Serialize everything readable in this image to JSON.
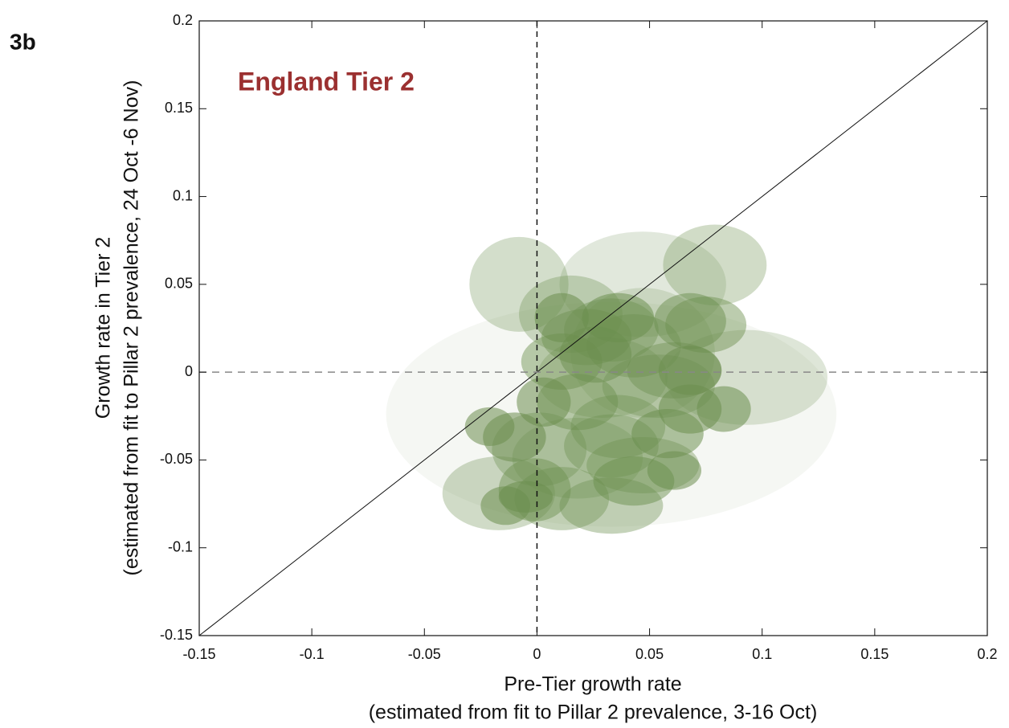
{
  "chart_data": {
    "type": "scatter",
    "panel_label": "3b",
    "title": "England Tier 2",
    "xlabel": [
      "Pre-Tier growth rate",
      "(estimated from fit to Pillar 2 prevalence, 3-16 Oct)"
    ],
    "ylabel": [
      "Growth rate in Tier 2",
      "(estimated from fit to Pillar 2 prevalence, 24 Oct -6 Nov)"
    ],
    "x": [
      0.033,
      -0.008,
      0.047,
      0.079,
      0.093,
      0.015,
      0.047,
      0.068,
      0.075,
      0.033,
      0.022,
      0.043,
      0.061,
      0.029,
      0.011,
      0.054,
      0.068,
      0.083,
      0.018,
      0.036,
      0.058,
      -0.021,
      -0.01,
      0.001,
      0.018,
      0.047,
      0.061,
      0.033,
      -0.017,
      -0.001,
      0.011,
      0.033,
      -0.014,
      -0.005,
      0.003,
      0.068,
      0.026,
      0.043,
      0.011,
      0.036
    ],
    "y": [
      -0.024,
      0.05,
      0.05,
      0.061,
      -0.003,
      0.033,
      0.011,
      0.029,
      0.027,
      0.024,
      0.02,
      0.015,
      0.001,
      -0.003,
      0.006,
      -0.008,
      -0.021,
      -0.021,
      -0.017,
      -0.031,
      -0.035,
      -0.031,
      -0.037,
      -0.044,
      -0.049,
      -0.053,
      -0.056,
      -0.042,
      -0.069,
      -0.067,
      -0.072,
      -0.076,
      -0.076,
      -0.071,
      -0.017,
      0.001,
      0.01,
      -0.062,
      0.031,
      0.031
    ],
    "xerr": [
      0.1,
      0.022,
      0.037,
      0.023,
      0.036,
      0.023,
      0.032,
      0.016,
      0.018,
      0.021,
      0.02,
      0.021,
      0.021,
      0.029,
      0.018,
      0.025,
      0.014,
      0.012,
      0.018,
      0.021,
      0.016,
      0.011,
      0.014,
      0.021,
      0.029,
      0.025,
      0.012,
      0.021,
      0.025,
      0.016,
      0.021,
      0.023,
      0.011,
      0.012,
      0.012,
      0.014,
      0.016,
      0.018,
      0.012,
      0.016
    ],
    "yerr": [
      0.064,
      0.027,
      0.03,
      0.023,
      0.027,
      0.022,
      0.037,
      0.016,
      0.016,
      0.018,
      0.016,
      0.018,
      0.016,
      0.023,
      0.016,
      0.018,
      0.014,
      0.013,
      0.016,
      0.018,
      0.014,
      0.011,
      0.014,
      0.021,
      0.023,
      0.016,
      0.011,
      0.018,
      0.021,
      0.018,
      0.018,
      0.016,
      0.011,
      0.009,
      0.014,
      0.014,
      0.016,
      0.014,
      0.014,
      0.014
    ],
    "color": "#6b8e4e",
    "xlim": [
      -0.15,
      0.2
    ],
    "ylim": [
      -0.15,
      0.2
    ],
    "xticks": [
      -0.15,
      -0.1,
      -0.05,
      0,
      0.05,
      0.1,
      0.15,
      0.2
    ],
    "yticks": [
      -0.15,
      -0.1,
      -0.05,
      0,
      0.05,
      0.1,
      0.15,
      0.2
    ]
  }
}
